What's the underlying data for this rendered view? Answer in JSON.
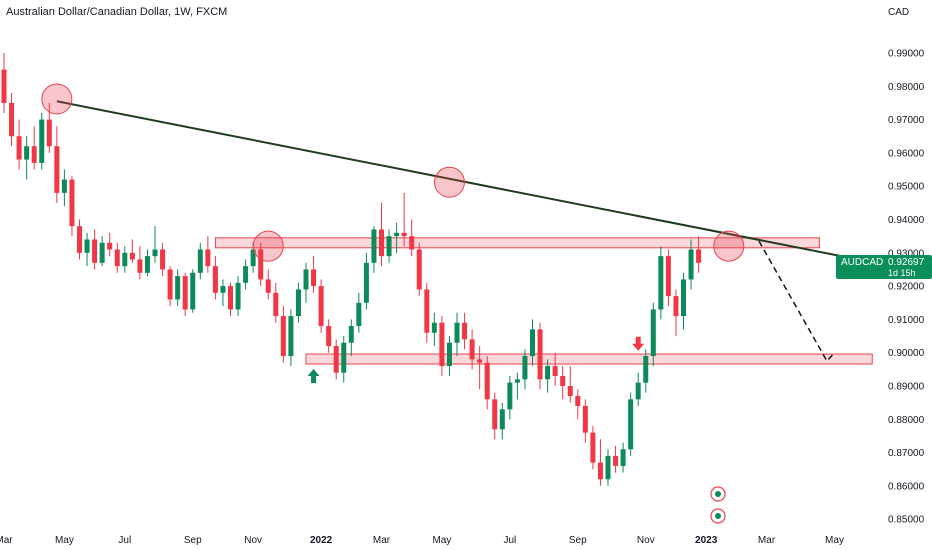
{
  "header": {
    "title": "Australian Dollar/Canadian Dollar, 1W, FXCM"
  },
  "price_axis": {
    "currency": "CAD"
  },
  "badge": {
    "symbol": "AUDCAD",
    "price": "0.92697",
    "countdown": "1d 15h",
    "color": "#0b8f5a"
  },
  "colors": {
    "up": "#0c8a5a",
    "down": "#f23645",
    "zone_fill": "#f7c6ca",
    "zone_stroke": "#e8434f",
    "trendline": "#1f3b1f",
    "marker": "#e8434f"
  },
  "chart_data": {
    "type": "candlestick",
    "symbol": "AUDCAD",
    "timeframe": "1W",
    "ylim": [
      0.845,
      1.0
    ],
    "y_ticks": [
      "0.99000",
      "0.98000",
      "0.97000",
      "0.96000",
      "0.95000",
      "0.94000",
      "0.93000",
      "0.92000",
      "0.91000",
      "0.90000",
      "0.89000",
      "0.88000",
      "0.87000",
      "0.86000",
      "0.85000"
    ],
    "y_tick_values": [
      0.99,
      0.98,
      0.97,
      0.96,
      0.95,
      0.94,
      0.93,
      0.92,
      0.91,
      0.9,
      0.89,
      0.88,
      0.87,
      0.86,
      0.85
    ],
    "x_ticks": [
      {
        "label": "Mar",
        "week": 0,
        "bold": false
      },
      {
        "label": "May",
        "week": 8,
        "bold": false
      },
      {
        "label": "Jul",
        "week": 16,
        "bold": false
      },
      {
        "label": "Sep",
        "week": 25,
        "bold": false
      },
      {
        "label": "Nov",
        "week": 33,
        "bold": false
      },
      {
        "label": "2022",
        "week": 42,
        "bold": true
      },
      {
        "label": "Mar",
        "week": 50,
        "bold": false
      },
      {
        "label": "May",
        "week": 58,
        "bold": false
      },
      {
        "label": "Jul",
        "week": 67,
        "bold": false
      },
      {
        "label": "Sep",
        "week": 76,
        "bold": false
      },
      {
        "label": "Nov",
        "week": 85,
        "bold": false
      },
      {
        "label": "2023",
        "week": 93,
        "bold": true
      },
      {
        "label": "Mar",
        "week": 101,
        "bold": false
      },
      {
        "label": "May",
        "week": 110,
        "bold": false
      }
    ],
    "candles": [
      [
        0.985,
        0.99,
        0.972,
        0.975
      ],
      [
        0.975,
        0.978,
        0.962,
        0.965
      ],
      [
        0.965,
        0.97,
        0.955,
        0.958
      ],
      [
        0.958,
        0.965,
        0.952,
        0.962
      ],
      [
        0.962,
        0.968,
        0.955,
        0.957
      ],
      [
        0.957,
        0.972,
        0.955,
        0.97
      ],
      [
        0.97,
        0.975,
        0.96,
        0.962
      ],
      [
        0.962,
        0.968,
        0.945,
        0.948
      ],
      [
        0.948,
        0.955,
        0.944,
        0.952
      ],
      [
        0.952,
        0.953,
        0.935,
        0.938
      ],
      [
        0.938,
        0.94,
        0.928,
        0.93
      ],
      [
        0.93,
        0.936,
        0.926,
        0.934
      ],
      [
        0.934,
        0.937,
        0.925,
        0.927
      ],
      [
        0.927,
        0.935,
        0.926,
        0.933
      ],
      [
        0.933,
        0.936,
        0.929,
        0.931
      ],
      [
        0.931,
        0.933,
        0.924,
        0.926
      ],
      [
        0.926,
        0.932,
        0.924,
        0.93
      ],
      [
        0.93,
        0.934,
        0.927,
        0.928
      ],
      [
        0.928,
        0.932,
        0.922,
        0.924
      ],
      [
        0.924,
        0.931,
        0.923,
        0.929
      ],
      [
        0.929,
        0.938,
        0.927,
        0.931
      ],
      [
        0.931,
        0.933,
        0.923,
        0.925
      ],
      [
        0.925,
        0.926,
        0.914,
        0.916
      ],
      [
        0.916,
        0.925,
        0.914,
        0.923
      ],
      [
        0.923,
        0.924,
        0.911,
        0.913
      ],
      [
        0.913,
        0.925,
        0.912,
        0.924
      ],
      [
        0.924,
        0.933,
        0.922,
        0.931
      ],
      [
        0.931,
        0.935,
        0.924,
        0.926
      ],
      [
        0.926,
        0.929,
        0.916,
        0.918
      ],
      [
        0.918,
        0.922,
        0.914,
        0.92
      ],
      [
        0.92,
        0.921,
        0.911,
        0.913
      ],
      [
        0.913,
        0.923,
        0.911,
        0.921
      ],
      [
        0.921,
        0.928,
        0.919,
        0.926
      ],
      [
        0.926,
        0.933,
        0.924,
        0.931
      ],
      [
        0.931,
        0.933,
        0.92,
        0.922
      ],
      [
        0.922,
        0.925,
        0.916,
        0.918
      ],
      [
        0.918,
        0.921,
        0.909,
        0.911
      ],
      [
        0.911,
        0.914,
        0.897,
        0.899
      ],
      [
        0.899,
        0.913,
        0.896,
        0.911
      ],
      [
        0.911,
        0.921,
        0.909,
        0.919
      ],
      [
        0.919,
        0.927,
        0.915,
        0.925
      ],
      [
        0.925,
        0.929,
        0.918,
        0.92
      ],
      [
        0.92,
        0.922,
        0.906,
        0.908
      ],
      [
        0.908,
        0.91,
        0.9,
        0.902
      ],
      [
        0.902,
        0.904,
        0.892,
        0.894
      ],
      [
        0.894,
        0.905,
        0.891,
        0.903
      ],
      [
        0.903,
        0.91,
        0.899,
        0.908
      ],
      [
        0.908,
        0.918,
        0.906,
        0.915
      ],
      [
        0.915,
        0.93,
        0.913,
        0.927
      ],
      [
        0.927,
        0.938,
        0.924,
        0.937
      ],
      [
        0.937,
        0.945,
        0.926,
        0.929
      ],
      [
        0.929,
        0.937,
        0.927,
        0.935
      ],
      [
        0.935,
        0.939,
        0.93,
        0.936
      ],
      [
        0.936,
        0.948,
        0.932,
        0.935
      ],
      [
        0.935,
        0.94,
        0.929,
        0.931
      ],
      [
        0.931,
        0.933,
        0.917,
        0.919
      ],
      [
        0.919,
        0.921,
        0.903,
        0.906
      ],
      [
        0.906,
        0.912,
        0.902,
        0.909
      ],
      [
        0.909,
        0.911,
        0.893,
        0.896
      ],
      [
        0.896,
        0.905,
        0.893,
        0.903
      ],
      [
        0.903,
        0.912,
        0.899,
        0.909
      ],
      [
        0.909,
        0.912,
        0.901,
        0.904
      ],
      [
        0.904,
        0.907,
        0.895,
        0.898
      ],
      [
        0.898,
        0.902,
        0.889,
        0.897
      ],
      [
        0.897,
        0.899,
        0.883,
        0.886
      ],
      [
        0.886,
        0.888,
        0.874,
        0.877
      ],
      [
        0.877,
        0.885,
        0.874,
        0.883
      ],
      [
        0.883,
        0.893,
        0.88,
        0.891
      ],
      [
        0.891,
        0.894,
        0.886,
        0.892
      ],
      [
        0.892,
        0.901,
        0.889,
        0.899
      ],
      [
        0.899,
        0.91,
        0.896,
        0.907
      ],
      [
        0.907,
        0.909,
        0.889,
        0.892
      ],
      [
        0.892,
        0.898,
        0.888,
        0.896
      ],
      [
        0.896,
        0.9,
        0.89,
        0.893
      ],
      [
        0.893,
        0.896,
        0.886,
        0.89
      ],
      [
        0.89,
        0.896,
        0.885,
        0.887
      ],
      [
        0.887,
        0.889,
        0.88,
        0.884
      ],
      [
        0.884,
        0.886,
        0.873,
        0.876
      ],
      [
        0.876,
        0.878,
        0.865,
        0.867
      ],
      [
        0.867,
        0.874,
        0.86,
        0.862
      ],
      [
        0.862,
        0.871,
        0.86,
        0.869
      ],
      [
        0.869,
        0.872,
        0.864,
        0.866
      ],
      [
        0.866,
        0.873,
        0.864,
        0.871
      ],
      [
        0.871,
        0.888,
        0.869,
        0.886
      ],
      [
        0.886,
        0.894,
        0.884,
        0.891
      ],
      [
        0.891,
        0.901,
        0.888,
        0.899
      ],
      [
        0.899,
        0.915,
        0.896,
        0.913
      ],
      [
        0.913,
        0.932,
        0.91,
        0.929
      ],
      [
        0.929,
        0.931,
        0.914,
        0.917
      ],
      [
        0.917,
        0.919,
        0.905,
        0.911
      ],
      [
        0.911,
        0.924,
        0.907,
        0.922
      ],
      [
        0.922,
        0.934,
        0.919,
        0.931
      ],
      [
        0.931,
        0.935,
        0.924,
        0.927
      ]
    ],
    "annotations": {
      "trendline": [
        [
          7,
          0.9755
        ],
        [
          112,
          0.9285
        ]
      ],
      "resistance_zone": {
        "y_low": 0.9315,
        "y_high": 0.9345,
        "from_week": 28,
        "to_week": 108
      },
      "support_zone": {
        "y_low": 0.8966,
        "y_high": 0.8996,
        "from_week": 40,
        "to_week": 115
      },
      "circles": [
        [
          7,
          0.9762
        ],
        [
          59,
          0.9512
        ],
        [
          35,
          0.932
        ],
        [
          96,
          0.932
        ]
      ],
      "projection": [
        [
          100,
          0.9335
        ],
        [
          109,
          0.8975
        ],
        [
          110,
          0.9
        ]
      ],
      "arrows": [
        {
          "week": 41,
          "y": 0.893,
          "dir": "up",
          "color": "#0c8a5a"
        },
        {
          "week": 84,
          "y": 0.9027,
          "dir": "down",
          "color": "#f23645"
        }
      ]
    }
  }
}
